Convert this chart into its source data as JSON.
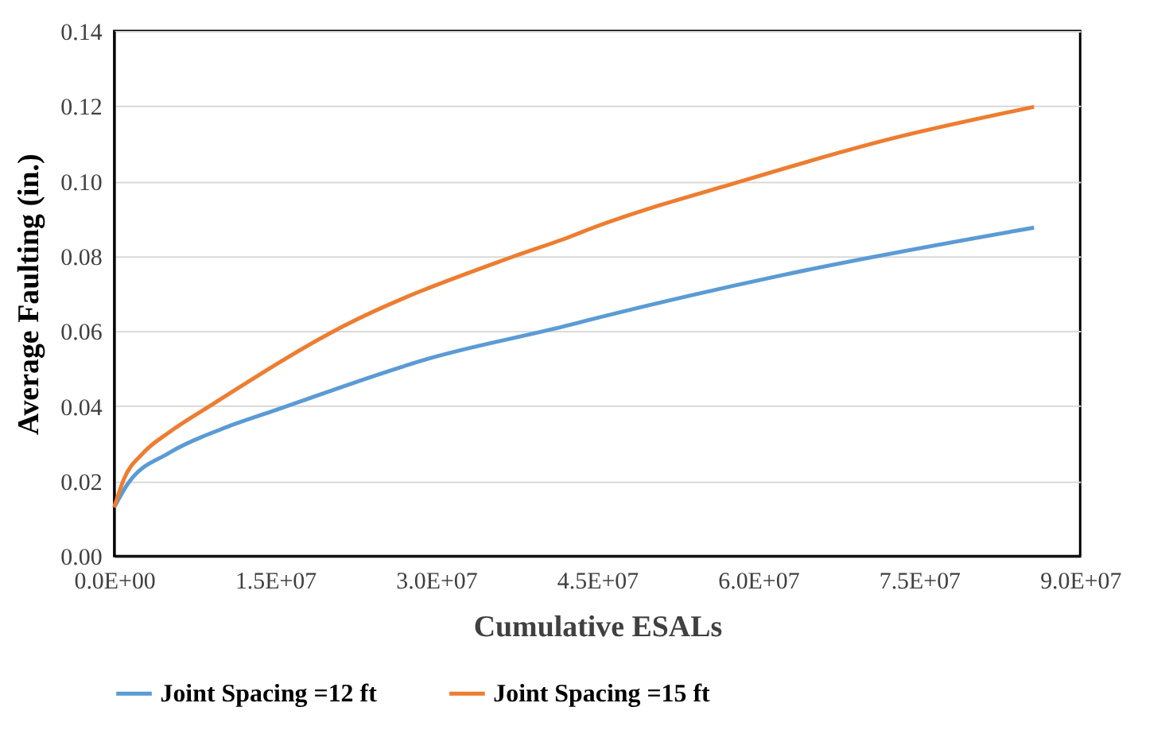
{
  "chart_data": {
    "type": "line",
    "xlabel": "Cumulative ESALs",
    "ylabel": "Average Faulting (in.)",
    "xlim": [
      0,
      90000000
    ],
    "xticks": [
      {
        "value": 0,
        "label": "0.0E+00"
      },
      {
        "value": 15000000,
        "label": "1.5E+07"
      },
      {
        "value": 30000000,
        "label": "3.0E+07"
      },
      {
        "value": 45000000,
        "label": "4.5E+07"
      },
      {
        "value": 60000000,
        "label": "6.0E+07"
      },
      {
        "value": 75000000,
        "label": "7.5E+07"
      },
      {
        "value": 90000000,
        "label": "9.0E+07"
      }
    ],
    "ylim": [
      0,
      0.14
    ],
    "yticks": [
      {
        "value": 0,
        "label": "0.00"
      },
      {
        "value": 0.02,
        "label": "0.02"
      },
      {
        "value": 0.04,
        "label": "0.04"
      },
      {
        "value": 0.06,
        "label": "0.06"
      },
      {
        "value": 0.08,
        "label": "0.08"
      },
      {
        "value": 0.1,
        "label": "0.10"
      },
      {
        "value": 0.12,
        "label": "0.12"
      },
      {
        "value": 0.14,
        "label": "0.14"
      }
    ],
    "grid": "y",
    "legend": "bottom",
    "marker": "none",
    "line_style": "solid",
    "series": [
      {
        "name": "Joint Spacing =12 ft",
        "color": "#5b9bd5",
        "x": [
          0,
          1200000,
          5100000,
          10000000,
          15000000,
          29700000,
          42500000,
          44000000,
          62200000,
          85700000
        ],
        "values": [
          0.013,
          0.019,
          0.0275,
          0.0339,
          0.0389,
          0.053,
          0.0617,
          0.0628,
          0.0749,
          0.0876
        ]
      },
      {
        "name": "Joint Spacing =15 ft",
        "color": "#ed7d31",
        "x": [
          0,
          900000,
          2700000,
          5100000,
          9050000,
          21400000,
          37100000,
          42500000,
          44000000,
          58800000,
          72100000,
          85700000
        ],
        "values": [
          0.013,
          0.0205,
          0.0275,
          0.033,
          0.0403,
          0.0614,
          0.0798,
          0.0852,
          0.0869,
          0.1003,
          0.1111,
          0.1198
        ]
      }
    ]
  }
}
